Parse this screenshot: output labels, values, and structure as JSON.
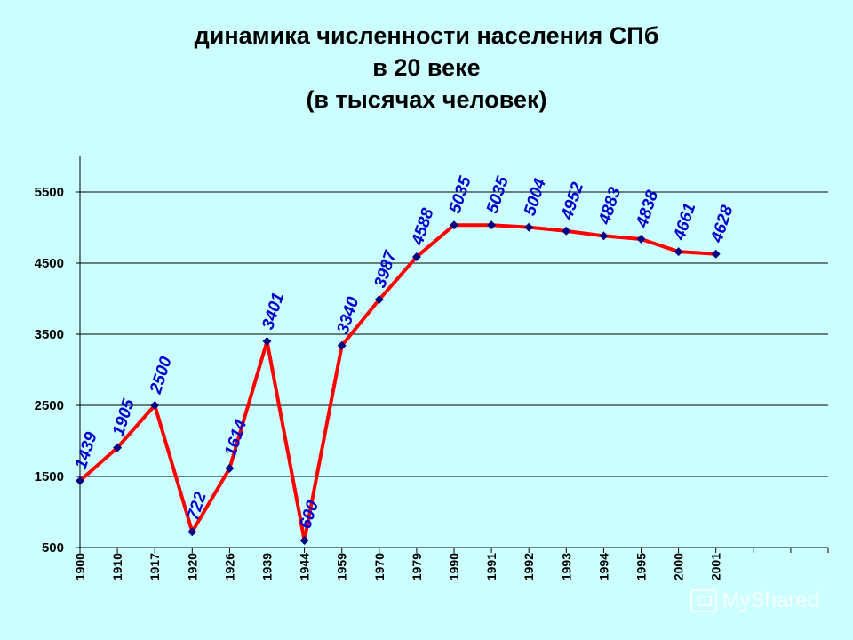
{
  "chart_data": {
    "type": "line",
    "title_lines": [
      "динамика численности населения СПб",
      "в 20 веке",
      "(в тысячах человек)"
    ],
    "categories": [
      "1900",
      "1910",
      "1917",
      "1920",
      "1926",
      "1939",
      "1944",
      "1959",
      "1970",
      "1979",
      "1990",
      "1991",
      "1992",
      "1993",
      "1994",
      "1995",
      "2000",
      "2001"
    ],
    "values": [
      1439,
      1905,
      2500,
      722,
      1614,
      3401,
      600,
      3340,
      3987,
      4588,
      5035,
      5035,
      5004,
      4952,
      4883,
      4838,
      4661,
      4628
    ],
    "yticks": [
      500,
      1500,
      2500,
      3500,
      4500,
      5500
    ],
    "ylim": [
      500,
      6000
    ],
    "grid": true,
    "legend": "none",
    "line_color": "#ff0000",
    "marker_color": "#000080",
    "label_color": "#0000cc",
    "background": "#ccffff"
  },
  "watermark": "MyShared"
}
